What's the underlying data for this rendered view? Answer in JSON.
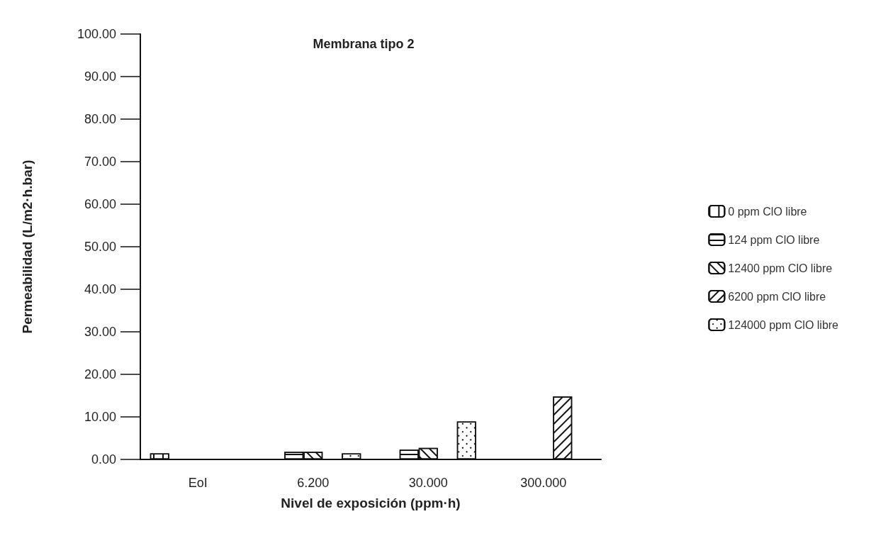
{
  "chart_data": {
    "type": "bar",
    "title": "Membrana tipo 2",
    "xlabel": "Nivel de exposición (ppm·h)",
    "ylabel": "Permeabilidad (L/m2·h.bar)",
    "categories": [
      "EoI",
      "6.200",
      "30.000",
      "300.000"
    ],
    "series": [
      {
        "name": "0 ppm ClO libre",
        "color": "#ffffff",
        "values": [
          1.4,
          null,
          null,
          null
        ]
      },
      {
        "name": "124 ppm ClO libre",
        "color": "#ffffff",
        "values": [
          null,
          1.8,
          2.3,
          null
        ]
      },
      {
        "name": "12400 ppm ClO libre",
        "color": "#ffffff",
        "values": [
          null,
          1.8,
          2.7,
          null
        ]
      },
      {
        "name": "6200 ppm ClO libre",
        "color": "#ffffff",
        "values": [
          null,
          null,
          null,
          14.8
        ]
      },
      {
        "name": "124000 ppm ClO libre",
        "color": "#ffffff",
        "values": [
          null,
          1.4,
          8.9,
          null
        ]
      }
    ],
    "ylim": [
      0,
      100
    ],
    "yticks": [
      {
        "value": 0,
        "label": "0.00"
      },
      {
        "value": 10,
        "label": "10.00"
      },
      {
        "value": 20,
        "label": "20.00"
      },
      {
        "value": 30,
        "label": "30.00"
      },
      {
        "value": 40,
        "label": "40.00"
      },
      {
        "value": 50,
        "label": "50.00"
      },
      {
        "value": 60,
        "label": "60.00"
      },
      {
        "value": 70,
        "label": "70.00"
      },
      {
        "value": 80,
        "label": "80.00"
      },
      {
        "value": 90,
        "label": "90.00"
      },
      {
        "value": 100,
        "label": "100.00"
      }
    ],
    "grid": false,
    "legend": "right"
  }
}
